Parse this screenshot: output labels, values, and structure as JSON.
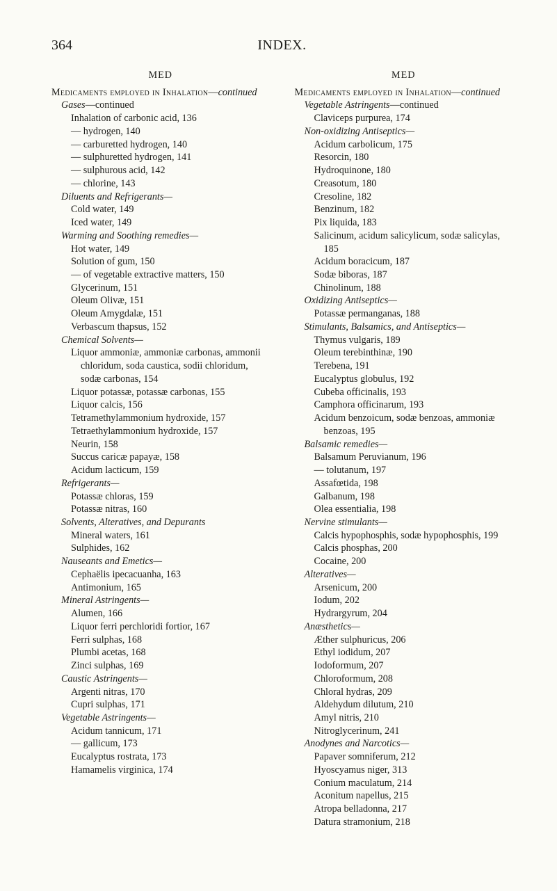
{
  "page_number": "364",
  "index_title": "INDEX.",
  "column_headers": {
    "left": "MED",
    "right": "MED"
  },
  "left": [
    {
      "lvl": 0,
      "html": "<span class='smcaps'>Medicaments employed in Inhalation</span>—<i>continued</i>"
    },
    {
      "lvl": 1,
      "html": "<i>Gases</i>—continued"
    },
    {
      "lvl": 2,
      "text": "Inhalation of carbonic acid, 136"
    },
    {
      "lvl": 2,
      "text": "— hydrogen, 140"
    },
    {
      "lvl": 2,
      "text": "— carburetted hydrogen, 140"
    },
    {
      "lvl": 2,
      "text": "— sulphuretted hydrogen, 141"
    },
    {
      "lvl": 2,
      "text": "— sulphurous acid, 142"
    },
    {
      "lvl": 2,
      "text": "— chlorine, 143"
    },
    {
      "lvl": 1,
      "html": "<i>Diluents and Refrigerants—</i>"
    },
    {
      "lvl": 2,
      "text": "Cold water, 149"
    },
    {
      "lvl": 2,
      "text": "Iced water, 149"
    },
    {
      "lvl": 1,
      "html": "<i>Warming and Soothing remedies—</i>"
    },
    {
      "lvl": 2,
      "text": "Hot water, 149"
    },
    {
      "lvl": 2,
      "text": "Solution of gum, 150"
    },
    {
      "lvl": 2,
      "text": "— of vegetable extractive matters, 150"
    },
    {
      "lvl": 2,
      "text": "Glycerinum, 151"
    },
    {
      "lvl": 2,
      "text": "Oleum Olivæ, 151"
    },
    {
      "lvl": 2,
      "text": "Oleum Amygdalæ, 151"
    },
    {
      "lvl": 2,
      "text": "Verbascum thapsus, 152"
    },
    {
      "lvl": 1,
      "html": "<i>Chemical Solvents—</i>"
    },
    {
      "lvl": 2,
      "text": "Liquor ammoniæ, ammoniæ carbonas, ammonii chloridum, soda caustica, sodii chloridum, sodæ carbonas, 154"
    },
    {
      "lvl": 2,
      "text": "Liquor potassæ, potassæ carbonas, 155"
    },
    {
      "lvl": 2,
      "text": "Liquor calcis, 156"
    },
    {
      "lvl": 2,
      "text": "Tetramethylammonium hydroxide, 157"
    },
    {
      "lvl": 2,
      "text": "Tetraethylammonium hydroxide, 157"
    },
    {
      "lvl": 2,
      "text": "Neurin, 158"
    },
    {
      "lvl": 2,
      "text": "Succus caricæ papayæ, 158"
    },
    {
      "lvl": 2,
      "text": "Acidum lacticum, 159"
    },
    {
      "lvl": 1,
      "html": "<i>Refrigerants—</i>"
    },
    {
      "lvl": 2,
      "text": "Potassæ chloras, 159"
    },
    {
      "lvl": 2,
      "text": "Potassæ nitras, 160"
    },
    {
      "lvl": 1,
      "html": "<i>Solvents, Alteratives, and Depurants</i>"
    },
    {
      "lvl": 2,
      "text": "Mineral waters, 161"
    },
    {
      "lvl": 2,
      "text": "Sulphides, 162"
    },
    {
      "lvl": 1,
      "html": "<i>Nauseants and Emetics—</i>"
    },
    {
      "lvl": 2,
      "text": "Cephaëlis ipecacuanha, 163"
    },
    {
      "lvl": 2,
      "text": "Antimonium, 165"
    },
    {
      "lvl": 1,
      "html": "<i>Mineral Astringents—</i>"
    },
    {
      "lvl": 2,
      "text": "Alumen, 166"
    },
    {
      "lvl": 2,
      "text": "Liquor ferri perchloridi fortior, 167"
    },
    {
      "lvl": 2,
      "text": "Ferri sulphas, 168"
    },
    {
      "lvl": 2,
      "text": "Plumbi acetas, 168"
    },
    {
      "lvl": 2,
      "text": "Zinci sulphas, 169"
    },
    {
      "lvl": 1,
      "html": "<i>Caustic Astringents—</i>"
    },
    {
      "lvl": 2,
      "text": "Argenti nitras, 170"
    },
    {
      "lvl": 2,
      "text": "Cupri sulphas, 171"
    },
    {
      "lvl": 1,
      "html": "<i>Vegetable Astringents—</i>"
    },
    {
      "lvl": 2,
      "text": "Acidum tannicum, 171"
    },
    {
      "lvl": 2,
      "text": "— gallicum, 173"
    },
    {
      "lvl": 2,
      "text": "Eucalyptus rostrata, 173"
    },
    {
      "lvl": 2,
      "text": "Hamamelis virginica, 174"
    }
  ],
  "right": [
    {
      "lvl": 0,
      "html": "<span class='smcaps'>Medicaments employed in Inhalation</span>—<i>continued</i>"
    },
    {
      "lvl": 1,
      "html": "<i>Vegetable Astringents</i>—continued"
    },
    {
      "lvl": 2,
      "text": "Claviceps purpurea, 174"
    },
    {
      "lvl": 1,
      "html": "<i>Non-oxidizing Antiseptics—</i>"
    },
    {
      "lvl": 2,
      "text": "Acidum carbolicum, 175"
    },
    {
      "lvl": 2,
      "text": "Resorcin, 180"
    },
    {
      "lvl": 2,
      "text": "Hydroquinone, 180"
    },
    {
      "lvl": 2,
      "text": "Creasotum, 180"
    },
    {
      "lvl": 2,
      "text": "Cresoline, 182"
    },
    {
      "lvl": 2,
      "text": "Benzinum, 182"
    },
    {
      "lvl": 2,
      "text": "Pix liquida, 183"
    },
    {
      "lvl": 2,
      "text": "Salicinum, acidum salicylicum, sodæ salicylas, 185"
    },
    {
      "lvl": 2,
      "text": "Acidum boracicum, 187"
    },
    {
      "lvl": 2,
      "text": "Sodæ biboras, 187"
    },
    {
      "lvl": 2,
      "text": "Chinolinum, 188"
    },
    {
      "lvl": 1,
      "html": "<i>Oxidizing Antiseptics—</i>"
    },
    {
      "lvl": 2,
      "text": "Potassæ permanganas, 188"
    },
    {
      "lvl": 1,
      "html": "<i>Stimulants, Balsamics, and Antiseptics—</i>"
    },
    {
      "lvl": 2,
      "text": "Thymus vulgaris, 189"
    },
    {
      "lvl": 2,
      "text": "Oleum terebinthinæ, 190"
    },
    {
      "lvl": 2,
      "text": "Terebena, 191"
    },
    {
      "lvl": 2,
      "text": "Eucalyptus globulus, 192"
    },
    {
      "lvl": 2,
      "text": "Cubeba officinalis, 193"
    },
    {
      "lvl": 2,
      "text": "Camphora officinarum, 193"
    },
    {
      "lvl": 2,
      "text": "Acidum benzoicum, sodæ benzoas, ammoniæ benzoas, 195"
    },
    {
      "lvl": 1,
      "html": "<i>Balsamic remedies—</i>"
    },
    {
      "lvl": 2,
      "text": "Balsamum Peruvianum, 196"
    },
    {
      "lvl": 2,
      "text": "— tolutanum, 197"
    },
    {
      "lvl": 2,
      "text": "Assafœtida, 198"
    },
    {
      "lvl": 2,
      "text": "Galbanum, 198"
    },
    {
      "lvl": 2,
      "text": "Olea essentialia, 198"
    },
    {
      "lvl": 1,
      "html": "<i>Nervine stimulants—</i>"
    },
    {
      "lvl": 2,
      "text": "Calcis hypophosphis, sodæ hypophosphis, 199"
    },
    {
      "lvl": 2,
      "text": "Calcis phosphas, 200"
    },
    {
      "lvl": 2,
      "text": "Cocaine, 200"
    },
    {
      "lvl": 1,
      "html": "<i>Alteratives—</i>"
    },
    {
      "lvl": 2,
      "text": "Arsenicum, 200"
    },
    {
      "lvl": 2,
      "text": "Iodum, 202"
    },
    {
      "lvl": 2,
      "text": "Hydrargyrum, 204"
    },
    {
      "lvl": 1,
      "html": "<i>Anæsthetics—</i>"
    },
    {
      "lvl": 2,
      "text": "Æther sulphuricus, 206"
    },
    {
      "lvl": 2,
      "text": "Ethyl iodidum, 207"
    },
    {
      "lvl": 2,
      "text": "Iodoformum, 207"
    },
    {
      "lvl": 2,
      "text": "Chloroformum, 208"
    },
    {
      "lvl": 2,
      "text": "Chloral hydras, 209"
    },
    {
      "lvl": 2,
      "text": "Aldehydum dilutum, 210"
    },
    {
      "lvl": 2,
      "text": "Amyl nitris, 210"
    },
    {
      "lvl": 2,
      "text": "Nitroglycerinum, 241"
    },
    {
      "lvl": 1,
      "html": "<i>Anodynes and Narcotics—</i>"
    },
    {
      "lvl": 2,
      "text": "Papaver somniferum, 212"
    },
    {
      "lvl": 2,
      "text": "Hyoscyamus niger, 313"
    },
    {
      "lvl": 2,
      "text": "Conium maculatum, 214"
    },
    {
      "lvl": 2,
      "text": "Aconitum napellus, 215"
    },
    {
      "lvl": 2,
      "text": "Atropa belladonna, 217"
    },
    {
      "lvl": 2,
      "text": "Datura stramonium, 218"
    }
  ]
}
